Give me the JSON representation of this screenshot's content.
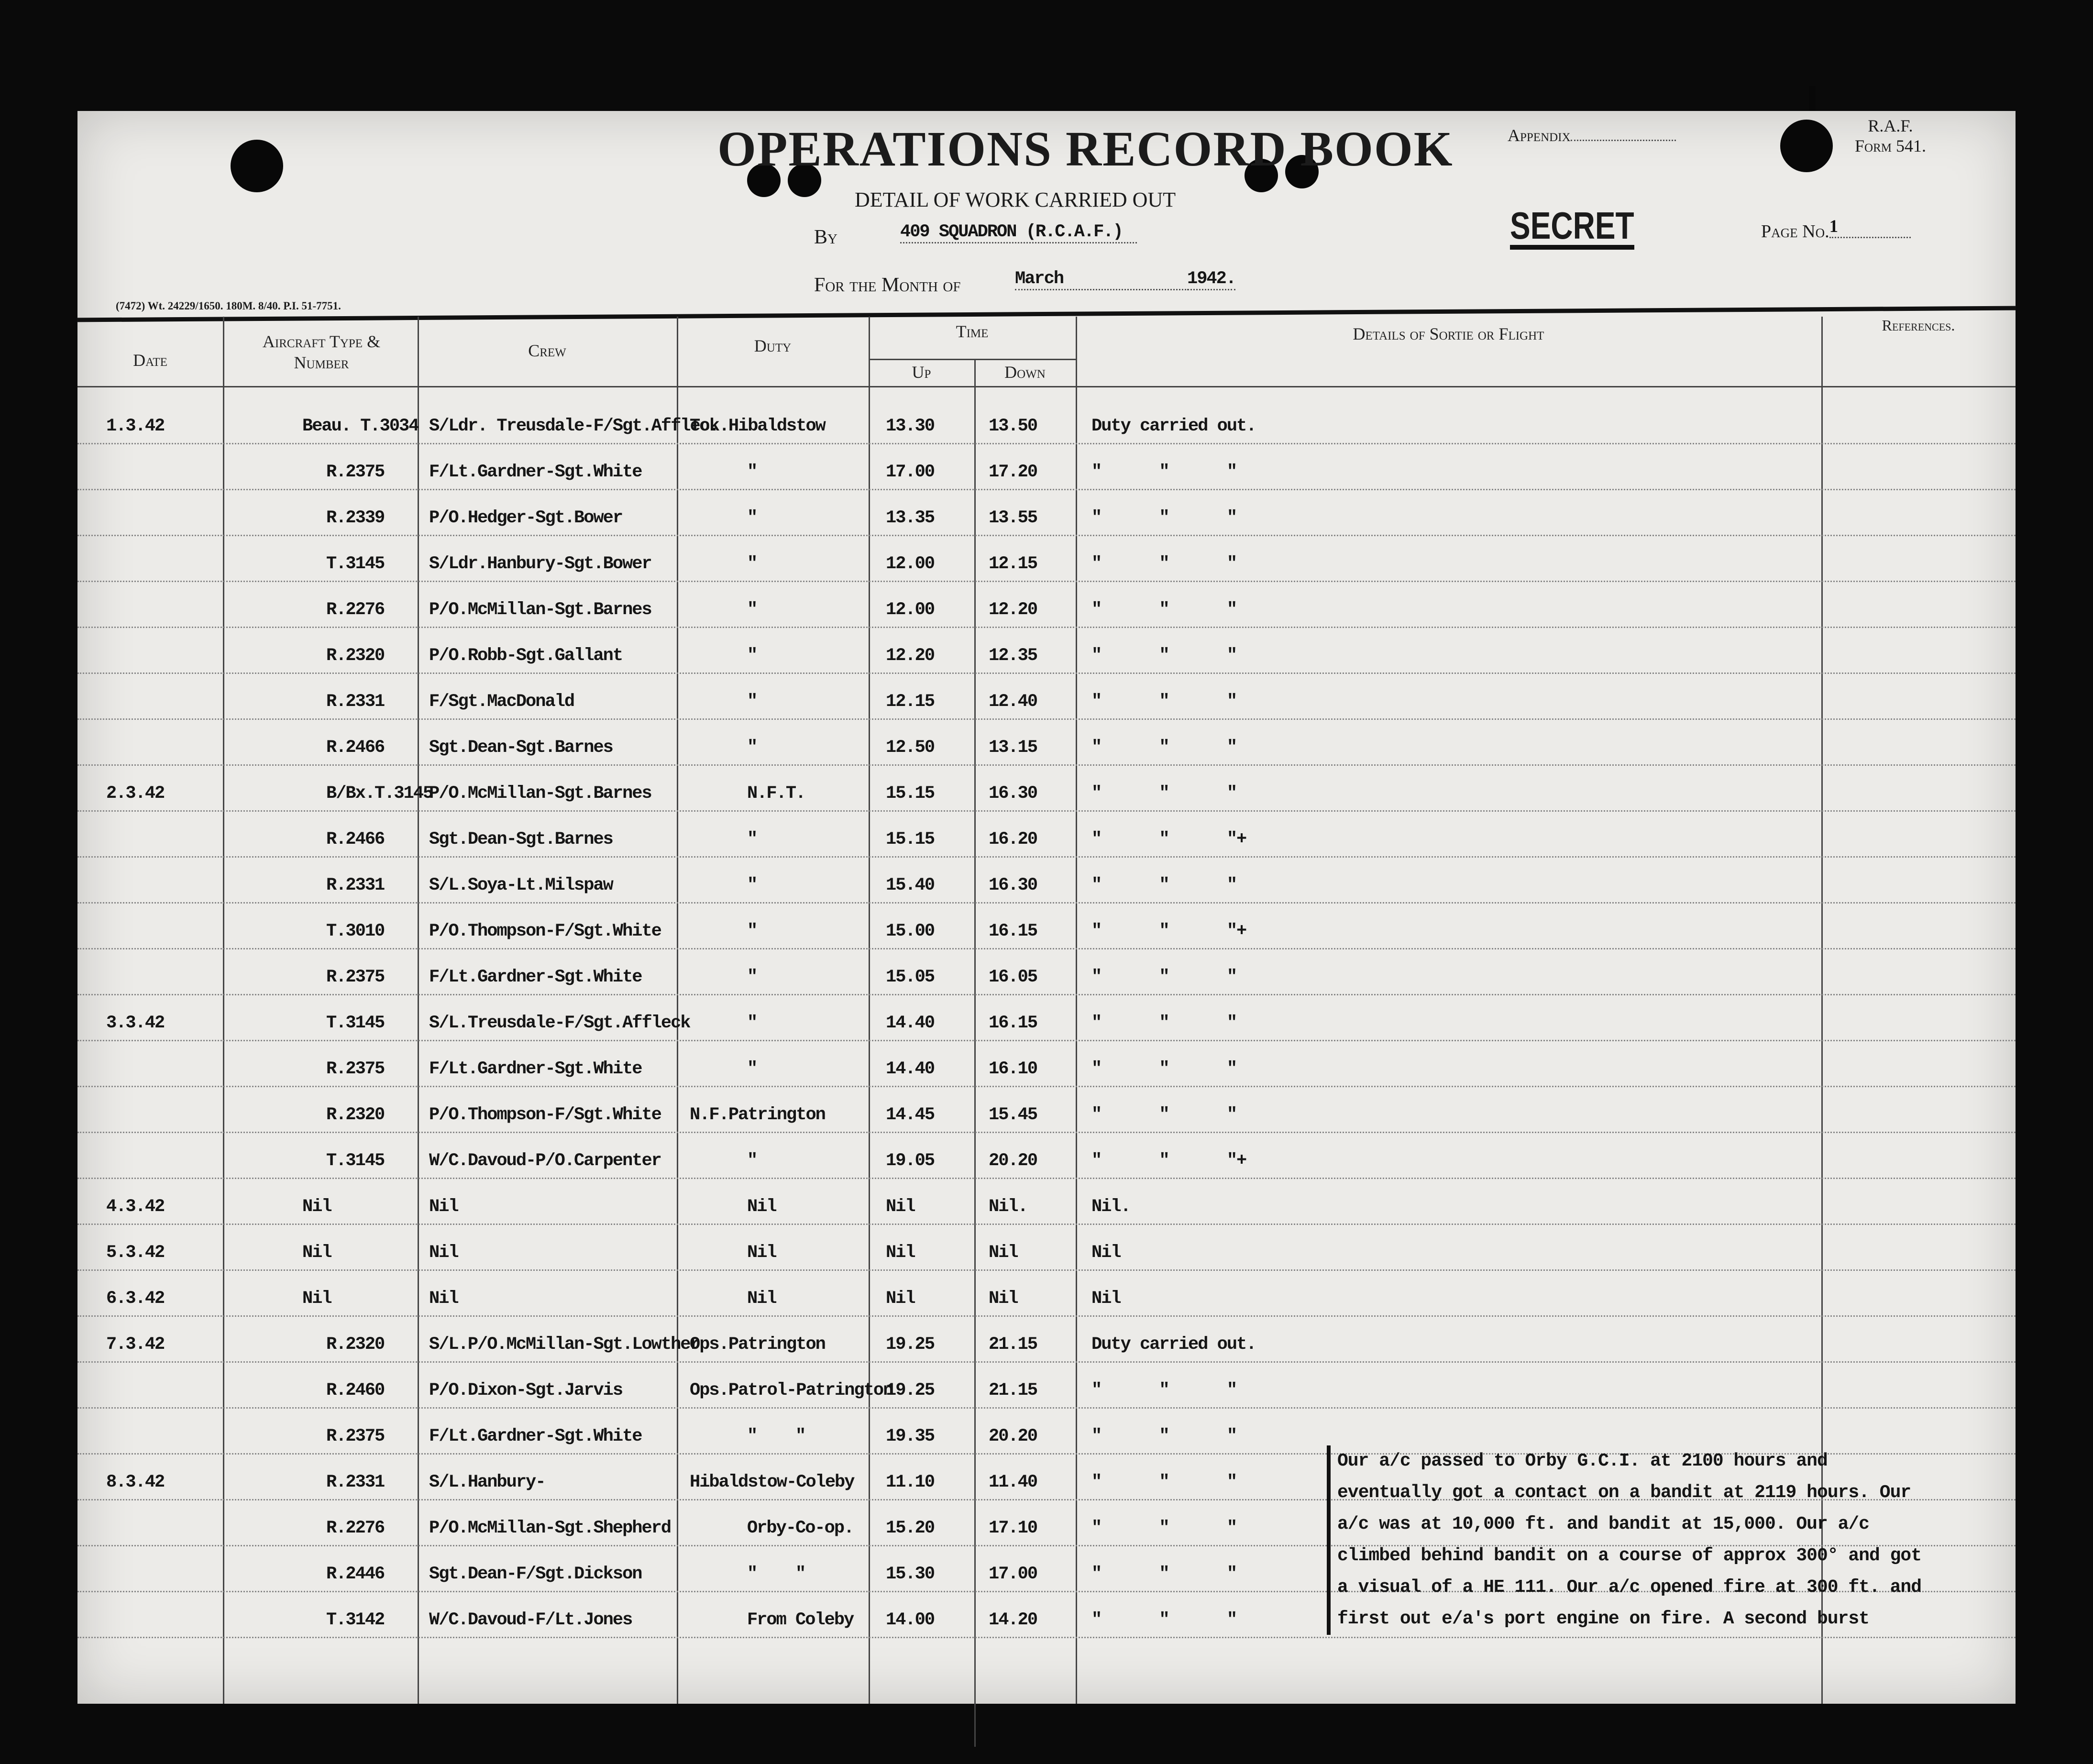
{
  "header": {
    "title": "OPERATIONS RECORD BOOK",
    "subtitle": "DETAIL OF WORK CARRIED OUT",
    "by_label": "By",
    "by_value": "409 SQUADRON (R.C.A.F.)",
    "month_label": "For the Month of",
    "month_value": "March",
    "year": "1942.",
    "appendix_label": "Appendix",
    "form_line1": "R.A.F.",
    "form_line2": "Form 541.",
    "classification": "SECRET",
    "page_label": "Page No.",
    "page_value": "1",
    "print_code": "(7472) Wt. 24229/1650. 180M. 8/40. P.I. 51-7751."
  },
  "columns": {
    "date": "Date",
    "aircraft": "Aircraft Type & Number",
    "crew": "Crew",
    "duty": "Duty",
    "time": "Time",
    "up": "Up",
    "down": "Down",
    "details": "Details of Sortie or Flight",
    "references": "References."
  },
  "rows": [
    {
      "date": "1.3.42",
      "aircraft": "Beau. T.3034",
      "crew": "S/Ldr. Treusdale-F/Sgt.Affleck.",
      "duty": "To. Hibaldstow",
      "up": "13.30",
      "down": "13.50",
      "details": "Duty carried out."
    },
    {
      "date": "",
      "aircraft": "R.2375",
      "crew": "F/Lt.Gardner-Sgt.White",
      "duty": "\"",
      "up": "17.00",
      "down": "17.20",
      "details": "\"      \"      \""
    },
    {
      "date": "",
      "aircraft": "R.2339",
      "crew": "P/O.Hedger-Sgt.Bower",
      "duty": "\"",
      "up": "13.35",
      "down": "13.55",
      "details": "\"      \"      \""
    },
    {
      "date": "",
      "aircraft": "T.3145",
      "crew": "S/Ldr.Hanbury-Sgt.Bower",
      "duty": "\"",
      "up": "12.00",
      "down": "12.15",
      "details": "\"      \"      \""
    },
    {
      "date": "",
      "aircraft": "R.2276",
      "crew": "P/O.McMillan-Sgt.Barnes",
      "duty": "\"",
      "up": "12.00",
      "down": "12.20",
      "details": "\"      \"      \""
    },
    {
      "date": "",
      "aircraft": "R.2320",
      "crew": "P/O.Robb-Sgt.Gallant",
      "duty": "\"",
      "up": "12.20",
      "down": "12.35",
      "details": "\"      \"      \""
    },
    {
      "date": "",
      "aircraft": "R.2331",
      "crew": "F/Sgt.MacDonald",
      "duty": "\"",
      "up": "12.15",
      "down": "12.40",
      "details": "\"      \"      \""
    },
    {
      "date": "",
      "aircraft": "R.2466",
      "crew": "Sgt.Dean-Sgt.Barnes",
      "duty": "\"",
      "up": "12.50",
      "down": "13.15",
      "details": "\"      \"      \""
    },
    {
      "date": "2.3.42",
      "aircraft": "B/Bx.T.3145",
      "crew": "P/O.McMillan-Sgt.Barnes",
      "duty": "N.F.T.",
      "up": "15.15",
      "down": "16.30",
      "details": "\"      \"      \""
    },
    {
      "date": "",
      "aircraft": "R.2466",
      "crew": "Sgt.Dean-Sgt.Barnes",
      "duty": "\"",
      "up": "15.15",
      "down": "16.20",
      "details": "\"      \"      \"+"
    },
    {
      "date": "",
      "aircraft": "R.2331",
      "crew": "S/L.Soya-Lt.Milspaw",
      "duty": "\"",
      "up": "15.40",
      "down": "16.30",
      "details": "\"      \"      \""
    },
    {
      "date": "",
      "aircraft": "T.3010",
      "crew": "P/O.Thompson-F/Sgt.White",
      "duty": "\"",
      "up": "15.00",
      "down": "16.15",
      "details": "\"      \"      \"+"
    },
    {
      "date": "",
      "aircraft": "R.2375",
      "crew": "F/Lt.Gardner-Sgt.White",
      "duty": "\"",
      "up": "15.05",
      "down": "16.05",
      "details": "\"      \"      \""
    },
    {
      "date": "3.3.42",
      "aircraft": "T.3145",
      "crew": "S/L.Treusdale-F/Sgt.Affleck",
      "duty": "\"",
      "up": "14.40",
      "down": "16.15",
      "details": "\"      \"      \""
    },
    {
      "date": "",
      "aircraft": "R.2375",
      "crew": "F/Lt.Gardner-Sgt.White",
      "duty": "\"",
      "up": "14.40",
      "down": "16.10",
      "details": "\"      \"      \""
    },
    {
      "date": "",
      "aircraft": "R.2320",
      "crew": "P/O.Thompson-F/Sgt.White",
      "duty": "N.F.Patrington",
      "up": "14.45",
      "down": "15.45",
      "details": "\"      \"      \""
    },
    {
      "date": "",
      "aircraft": "T.3145",
      "crew": "W/C.Davoud-P/O.Carpenter",
      "duty": "\"",
      "up": "19.05",
      "down": "20.20",
      "details": "\"      \"      \"+"
    },
    {
      "date": "4.3.42",
      "aircraft": "Nil",
      "crew": "Nil",
      "duty": "Nil",
      "up": "Nil",
      "down": "Nil.",
      "details": "Nil."
    },
    {
      "date": "5.3.42",
      "aircraft": "Nil",
      "crew": "Nil",
      "duty": "Nil",
      "up": "Nil",
      "down": "Nil",
      "details": "Nil"
    },
    {
      "date": "6.3.42",
      "aircraft": "Nil",
      "crew": "Nil",
      "duty": "Nil",
      "up": "Nil",
      "down": "Nil",
      "details": "Nil"
    },
    {
      "date": "7.3.42",
      "aircraft": "R.2320",
      "crew": "S/L.P/O.McMillan-Sgt.Lowther",
      "duty": "Ops.Patrington",
      "up": "19.25",
      "down": "21.15",
      "details": "Duty carried out."
    },
    {
      "date": "",
      "aircraft": "R.2460",
      "crew": "P/O.Dixon-Sgt.Jarvis",
      "duty": "Ops.Patrol-Patrington",
      "up": "19.25",
      "down": "21.15",
      "details": "\"      \"      \""
    },
    {
      "date": "",
      "aircraft": "R.2375",
      "crew": "F/Lt.Gardner-Sgt.White",
      "duty": "\"    \"",
      "up": "19.35",
      "down": "20.20",
      "details": "\"      \"      \""
    },
    {
      "date": "8.3.42",
      "aircraft": "R.2331",
      "crew": "S/L.Hanbury-",
      "duty": "Hibaldstow-Coleby",
      "up": "11.10",
      "down": "11.40",
      "details": "\"      \"      \""
    },
    {
      "date": "",
      "aircraft": "R.2276",
      "crew": "P/O.McMillan-Sgt.Shepherd",
      "duty": "Orby-Co-op.",
      "up": "15.20",
      "down": "17.10",
      "details": "\"      \"      \""
    },
    {
      "date": "",
      "aircraft": "R.2446",
      "crew": "Sgt.Dean-F/Sgt.Dickson",
      "duty": "\"    \"",
      "up": "15.30",
      "down": "17.00",
      "details": "\"      \"      \""
    },
    {
      "date": "",
      "aircraft": "T.3142",
      "crew": "W/C.Davoud-F/Lt.Jones",
      "duty": "From Coleby",
      "up": "14.00",
      "down": "14.20",
      "details": "\"      \"      \""
    }
  ],
  "narrative": "Our a/c passed to Orby G.C.I. at 2100 hours and eventually got a contact on a bandit at 2119 hours. Our a/c was at 10,000 ft. and bandit at 15,000. Our a/c climbed behind bandit on a course of approx 300° and got a visual of a HE 111. Our a/c opened fire at 300 ft. and first out e/a's port engine on fire. A second burst"
}
